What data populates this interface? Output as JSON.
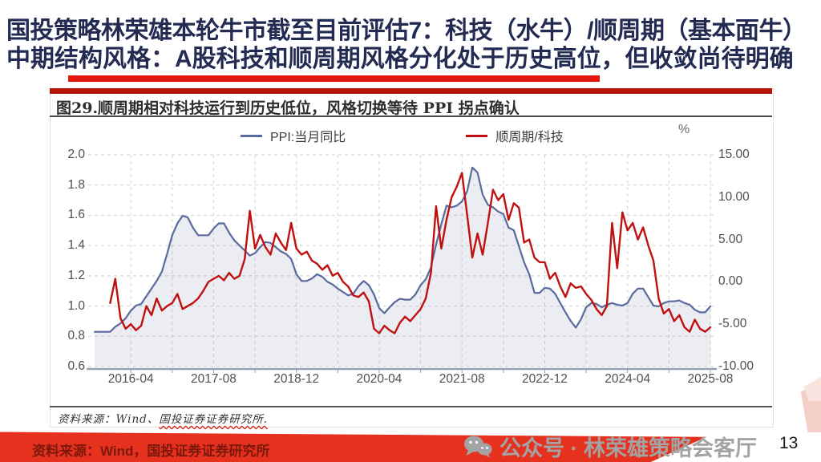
{
  "slide": {
    "title_line1": "国投策略林荣雄本轮牛市截至目前评估7：科技（水牛）/顺周期（基本面牛）",
    "title_line2": "中期结构风格：A股科技和顺周期风格分化处于历史高位，但收敛尚待明确",
    "footer_source": "资料来源：Wind，国投证券证券研究所",
    "watermark": "公众号 · 林荣雄策略会客厅",
    "page_number": "13"
  },
  "figure": {
    "title": "图29.顺周期相对科技运行到历史低位，风格切换等待 PPI 拐点确认",
    "source_prefix": "资料来源：Wind、",
    "source_underlined": "国投证券证券研究所."
  },
  "chart_data": {
    "type": "line",
    "title": "图29.顺周期相对科技运行到历史低位，风格切换等待 PPI 拐点确认",
    "x_start": "2015-09",
    "x_end": "2025-08",
    "x_interval": "monthly",
    "x_tick_labels": [
      "2016-04",
      "2017-08",
      "2018-12",
      "2020-04",
      "2021-08",
      "2022-12",
      "2024-04",
      "2025-08"
    ],
    "left_axis": {
      "min": 0.6,
      "max": 2.0,
      "ticks": [
        "2.0",
        "1.8",
        "1.6",
        "1.4",
        "1.2",
        "1.0",
        "0.8",
        "0.6"
      ]
    },
    "right_axis": {
      "min": -10,
      "max": 15,
      "unit": "%",
      "ticks": [
        "15.00",
        "10.00",
        "5.00",
        "0.00",
        "-5.00",
        "-10.00"
      ]
    },
    "grid": "dashed",
    "legend_position": "top",
    "series": [
      {
        "name": "PPI:当月同比",
        "axis": "right",
        "color": "#5a6a9e",
        "fill": "rgba(120,132,170,0.15)",
        "values": [
          -5.9,
          -5.9,
          -5.9,
          -5.9,
          -5.3,
          -4.9,
          -4.3,
          -3.4,
          -2.8,
          -2.6,
          -1.7,
          -0.8,
          0.1,
          1.2,
          3.3,
          5.5,
          6.9,
          7.8,
          7.6,
          6.4,
          5.5,
          5.5,
          5.5,
          6.3,
          6.9,
          6.9,
          5.8,
          4.9,
          4.3,
          3.7,
          3.1,
          3.4,
          4.1,
          4.7,
          4.6,
          4.1,
          3.6,
          3.3,
          2.7,
          0.9,
          0.1,
          0.1,
          0.4,
          0.9,
          0.6,
          0.0,
          -0.3,
          -0.8,
          -1.2,
          -1.6,
          -1.4,
          -0.5,
          0.1,
          -0.4,
          -1.5,
          -3.1,
          -3.7,
          -3.0,
          -2.4,
          -2.0,
          -2.1,
          -2.1,
          -1.5,
          -0.4,
          0.3,
          1.7,
          4.4,
          6.8,
          9.0,
          8.8,
          9.0,
          9.5,
          10.7,
          13.5,
          12.9,
          10.3,
          9.1,
          8.8,
          8.3,
          8.0,
          6.4,
          6.1,
          4.2,
          2.3,
          0.9,
          -1.3,
          -1.3,
          -0.7,
          -0.8,
          -1.4,
          -2.5,
          -3.6,
          -4.6,
          -5.4,
          -4.4,
          -3.0,
          -2.5,
          -2.6,
          -3.0,
          -2.7,
          -2.5,
          -2.7,
          -2.8,
          -2.5,
          -1.4,
          -0.8,
          -0.8,
          -1.8,
          -2.8,
          -2.9,
          -2.5,
          -2.3,
          -2.3,
          -2.2,
          -2.5,
          -2.7,
          -3.3,
          -3.6,
          -3.6,
          -2.9
        ]
      },
      {
        "name": "顺周期/科技",
        "axis": "left",
        "color": "#c01010",
        "values": [
          null,
          null,
          null,
          1.02,
          1.18,
          0.92,
          0.85,
          0.88,
          0.84,
          0.87,
          1.0,
          0.94,
          1.05,
          0.97,
          1.0,
          1.02,
          1.08,
          0.98,
          1.0,
          1.02,
          1.05,
          1.1,
          1.16,
          1.18,
          1.2,
          1.17,
          1.22,
          1.18,
          1.2,
          1.31,
          1.63,
          1.38,
          1.47,
          1.39,
          1.34,
          1.48,
          1.42,
          1.37,
          1.55,
          1.38,
          1.34,
          1.36,
          1.3,
          1.28,
          1.24,
          1.27,
          1.2,
          1.22,
          1.16,
          1.13,
          1.07,
          1.06,
          1.09,
          1.03,
          0.85,
          0.82,
          0.87,
          0.84,
          0.82,
          0.89,
          0.93,
          0.9,
          0.94,
          0.98,
          1.05,
          1.22,
          1.66,
          1.38,
          1.57,
          1.72,
          1.79,
          1.88,
          1.6,
          1.32,
          1.48,
          1.34,
          1.55,
          1.77,
          1.7,
          1.74,
          1.57,
          1.68,
          1.65,
          1.42,
          1.44,
          1.32,
          1.29,
          1.29,
          1.18,
          1.22,
          1.13,
          1.06,
          1.15,
          1.12,
          1.13,
          1.08,
          1.04,
          0.98,
          0.94,
          1.0,
          1.55,
          1.25,
          1.62,
          1.5,
          1.55,
          1.44,
          1.52,
          1.4,
          1.3,
          1.05,
          0.95,
          0.98,
          0.9,
          0.94,
          0.86,
          0.83,
          0.91,
          0.85,
          0.83,
          0.86
        ]
      }
    ]
  }
}
